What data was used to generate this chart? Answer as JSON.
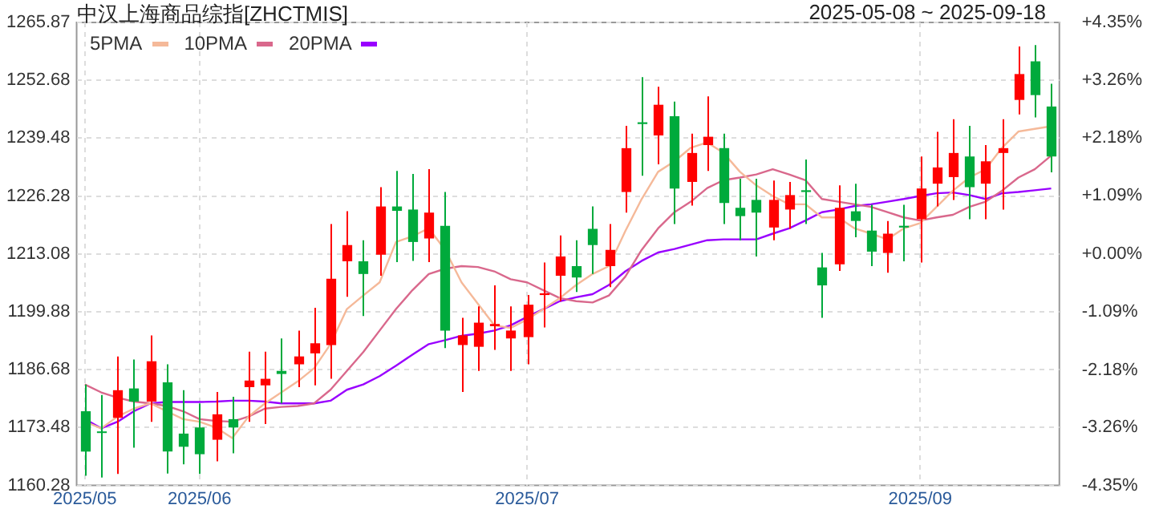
{
  "chart_data": {
    "type": "candlestick",
    "title": "中汉上海商品综指[ZHCTMIS]",
    "subtitle": "2025-05-08 ~ 2025-09-18",
    "categories": [
      "2025/05",
      null,
      null,
      null,
      null,
      null,
      null,
      "2025/06",
      null,
      null,
      null,
      null,
      null,
      null,
      null,
      null,
      null,
      null,
      null,
      null,
      null,
      null,
      null,
      null,
      null,
      null,
      null,
      "2025/07",
      null,
      null,
      null,
      null,
      null,
      null,
      null,
      null,
      null,
      null,
      null,
      null,
      null,
      null,
      null,
      null,
      null,
      null,
      null,
      null,
      null,
      null,
      null,
      "2025/09",
      null,
      null,
      null,
      null,
      null,
      null,
      null,
      null
    ],
    "ohlc": [
      [
        1177.2,
        1183.3,
        1162.5,
        1168.0
      ],
      [
        1172.6,
        1180.9,
        1162.1,
        1172.3
      ],
      [
        1175.7,
        1189.7,
        1162.9,
        1182.0
      ],
      [
        1182.4,
        1189.0,
        1168.9,
        1179.4
      ],
      [
        1179.4,
        1194.5,
        1174.8,
        1188.6
      ],
      [
        1183.8,
        1187.9,
        1163.0,
        1168.0
      ],
      [
        1172.1,
        1182.0,
        1165.1,
        1169.1
      ],
      [
        1173.5,
        1179.0,
        1162.9,
        1167.4
      ],
      [
        1170.7,
        1181.6,
        1165.8,
        1176.5
      ],
      [
        1175.4,
        1180.5,
        1167.6,
        1173.5
      ],
      [
        1182.7,
        1190.8,
        1174.8,
        1184.2
      ],
      [
        1183.1,
        1190.8,
        1174.3,
        1184.6
      ],
      [
        1186.4,
        1193.8,
        1179.0,
        1185.7
      ],
      [
        1187.9,
        1195.6,
        1182.7,
        1189.7
      ],
      [
        1190.4,
        1200.8,
        1183.1,
        1192.7
      ],
      [
        1192.3,
        1219.9,
        1184.6,
        1207.4
      ],
      [
        1211.4,
        1222.8,
        1203.3,
        1215.1
      ],
      [
        1211.4,
        1216.2,
        1198.9,
        1208.5
      ],
      [
        1212.9,
        1228.3,
        1208.1,
        1223.9
      ],
      [
        1223.9,
        1232.0,
        1211.2,
        1222.9
      ],
      [
        1223.2,
        1231.3,
        1211.5,
        1215.8
      ],
      [
        1216.6,
        1232.4,
        1211.2,
        1222.5
      ],
      [
        1219.5,
        1227.2,
        1191.6,
        1195.6
      ],
      [
        1192.3,
        1198.5,
        1181.6,
        1194.5
      ],
      [
        1191.9,
        1201.1,
        1186.4,
        1197.4
      ],
      [
        1196.6,
        1205.9,
        1191.2,
        1197.1
      ],
      [
        1193.8,
        1201.1,
        1186.4,
        1195.6
      ],
      [
        1194.1,
        1203.7,
        1187.9,
        1201.5
      ],
      [
        1203.7,
        1211.1,
        1196.3,
        1204.1
      ],
      [
        1208.1,
        1217.3,
        1202.3,
        1212.5
      ],
      [
        1210.3,
        1216.2,
        1204.4,
        1207.7
      ],
      [
        1218.8,
        1223.9,
        1208.5,
        1215.1
      ],
      [
        1210.3,
        1219.9,
        1205.5,
        1214.0
      ],
      [
        1227.2,
        1242.3,
        1222.5,
        1237.2
      ],
      [
        1243.1,
        1253.4,
        1230.9,
        1242.7
      ],
      [
        1240.1,
        1251.2,
        1233.5,
        1247.1
      ],
      [
        1244.5,
        1247.8,
        1219.9,
        1228.0
      ],
      [
        1229.5,
        1240.5,
        1224.1,
        1236.1
      ],
      [
        1237.9,
        1249.0,
        1232.0,
        1239.8
      ],
      [
        1237.2,
        1240.5,
        1219.9,
        1224.7
      ],
      [
        1223.6,
        1230.2,
        1216.2,
        1221.7
      ],
      [
        1225.4,
        1230.2,
        1212.5,
        1222.5
      ],
      [
        1219.1,
        1229.8,
        1216.2,
        1225.4
      ],
      [
        1223.2,
        1229.5,
        1218.8,
        1226.5
      ],
      [
        1227.6,
        1234.6,
        1219.9,
        1227.2
      ],
      [
        1210.0,
        1213.3,
        1198.5,
        1205.9
      ],
      [
        1210.7,
        1228.7,
        1209.2,
        1223.6
      ],
      [
        1222.8,
        1229.1,
        1216.9,
        1220.6
      ],
      [
        1218.4,
        1224.3,
        1210.3,
        1213.6
      ],
      [
        1213.3,
        1220.6,
        1208.8,
        1217.7
      ],
      [
        1219.5,
        1224.3,
        1211.4,
        1219.1
      ],
      [
        1221.0,
        1235.3,
        1211.1,
        1228.0
      ],
      [
        1229.1,
        1240.9,
        1223.9,
        1232.8
      ],
      [
        1230.6,
        1243.8,
        1225.4,
        1236.1
      ],
      [
        1235.3,
        1242.3,
        1221.0,
        1228.3
      ],
      [
        1229.1,
        1237.9,
        1221.0,
        1234.2
      ],
      [
        1236.1,
        1243.8,
        1223.2,
        1237.2
      ],
      [
        1248.2,
        1260.4,
        1244.9,
        1254.1
      ],
      [
        1257.0,
        1260.7,
        1244.2,
        1249.3
      ],
      [
        1246.7,
        1251.9,
        1231.7,
        1235.3
      ]
    ],
    "series": [
      {
        "name": "5PMA",
        "type": "line",
        "color": "#f5b999",
        "values": [
          1174.8,
          1173.3,
          1176.0,
          1177.8,
          1179.0,
          1177.2,
          1175.4,
          1174.8,
          1173.5,
          1171.1,
          1176.0,
          1179.0,
          1181.5,
          1184.0,
          1187.0,
          1192.5,
          1200.5,
          1203.6,
          1206.6,
          1215.8,
          1217.1,
          1218.9,
          1214.0,
          1206.6,
          1201.7,
          1196.8,
          1196.2,
          1198.1,
          1200.5,
          1203.0,
          1206.0,
          1208.5,
          1210.3,
          1218.3,
          1225.6,
          1231.8,
          1234.2,
          1237.3,
          1238.5,
          1236.1,
          1231.8,
          1228.7,
          1226.3,
          1224.4,
          1224.4,
          1221.4,
          1221.4,
          1218.9,
          1217.7,
          1216.4,
          1218.9,
          1220.1,
          1223.8,
          1227.5,
          1230.5,
          1232.4,
          1237.3,
          1241.0,
          1241.6,
          1242.2
        ]
      },
      {
        "name": "10PMA",
        "type": "line",
        "color": "#d9688c",
        "values": [
          1183.3,
          1181.5,
          1180.3,
          1179.4,
          1179.0,
          1178.4,
          1177.2,
          1175.4,
          1175.0,
          1174.8,
          1176.0,
          1177.8,
          1178.2,
          1178.4,
          1179.0,
          1182.1,
          1186.4,
          1190.7,
          1195.6,
          1200.5,
          1204.8,
          1208.5,
          1209.7,
          1210.3,
          1210.1,
          1209.1,
          1207.3,
          1206.6,
          1204.8,
          1203.0,
          1202.3,
          1202.0,
          1203.6,
          1207.9,
          1214.0,
          1218.9,
          1222.6,
          1225.0,
          1228.1,
          1229.9,
          1230.5,
          1231.2,
          1232.4,
          1231.2,
          1229.9,
          1225.6,
          1225.0,
          1224.4,
          1223.8,
          1222.6,
          1221.4,
          1220.7,
          1221.4,
          1222.0,
          1223.8,
          1225.0,
          1227.5,
          1230.5,
          1232.4,
          1235.5
        ]
      },
      {
        "name": "20PMA",
        "type": "line",
        "color": "#9900ff",
        "values": [
          1175.4,
          1173.3,
          1174.8,
          1177.2,
          1179.0,
          1179.3,
          1179.3,
          1179.3,
          1179.4,
          1179.6,
          1179.6,
          1179.4,
          1179.0,
          1179.0,
          1179.0,
          1179.6,
          1182.1,
          1183.3,
          1185.2,
          1187.6,
          1190.1,
          1192.5,
          1193.4,
          1194.4,
          1194.9,
          1195.6,
          1196.8,
          1198.7,
          1200.5,
          1202.3,
          1203.2,
          1203.9,
          1206.0,
          1209.1,
          1211.5,
          1213.4,
          1214.2,
          1215.2,
          1216.2,
          1216.4,
          1216.4,
          1216.4,
          1217.7,
          1218.9,
          1220.7,
          1222.6,
          1223.2,
          1224.0,
          1224.4,
          1225.0,
          1225.6,
          1226.3,
          1226.9,
          1227.1,
          1226.5,
          1225.6,
          1226.9,
          1227.2,
          1227.6,
          1228.0
        ]
      }
    ],
    "ylim": [
      1160.28,
      1265.87
    ],
    "yticks": [
      1160.28,
      1173.48,
      1186.68,
      1199.88,
      1213.08,
      1226.28,
      1239.48,
      1252.68,
      1265.87
    ],
    "y2lim": [
      -4.35,
      4.35
    ],
    "y2ticks": [
      {
        "value": -4.35,
        "label": "-4.35%"
      },
      {
        "value": -3.26,
        "label": "-3.26%"
      },
      {
        "value": -2.18,
        "label": "-2.18%"
      },
      {
        "value": -1.09,
        "label": "-1.09%"
      },
      {
        "value": 0,
        "label": "+0.00%"
      },
      {
        "value": 1.09,
        "label": "+1.09%"
      },
      {
        "value": 2.18,
        "label": "+2.18%"
      },
      {
        "value": 3.26,
        "label": "+3.26%"
      },
      {
        "value": 4.35,
        "label": "+4.35%"
      }
    ],
    "grid": true,
    "legend": "top left",
    "marker": "none"
  }
}
